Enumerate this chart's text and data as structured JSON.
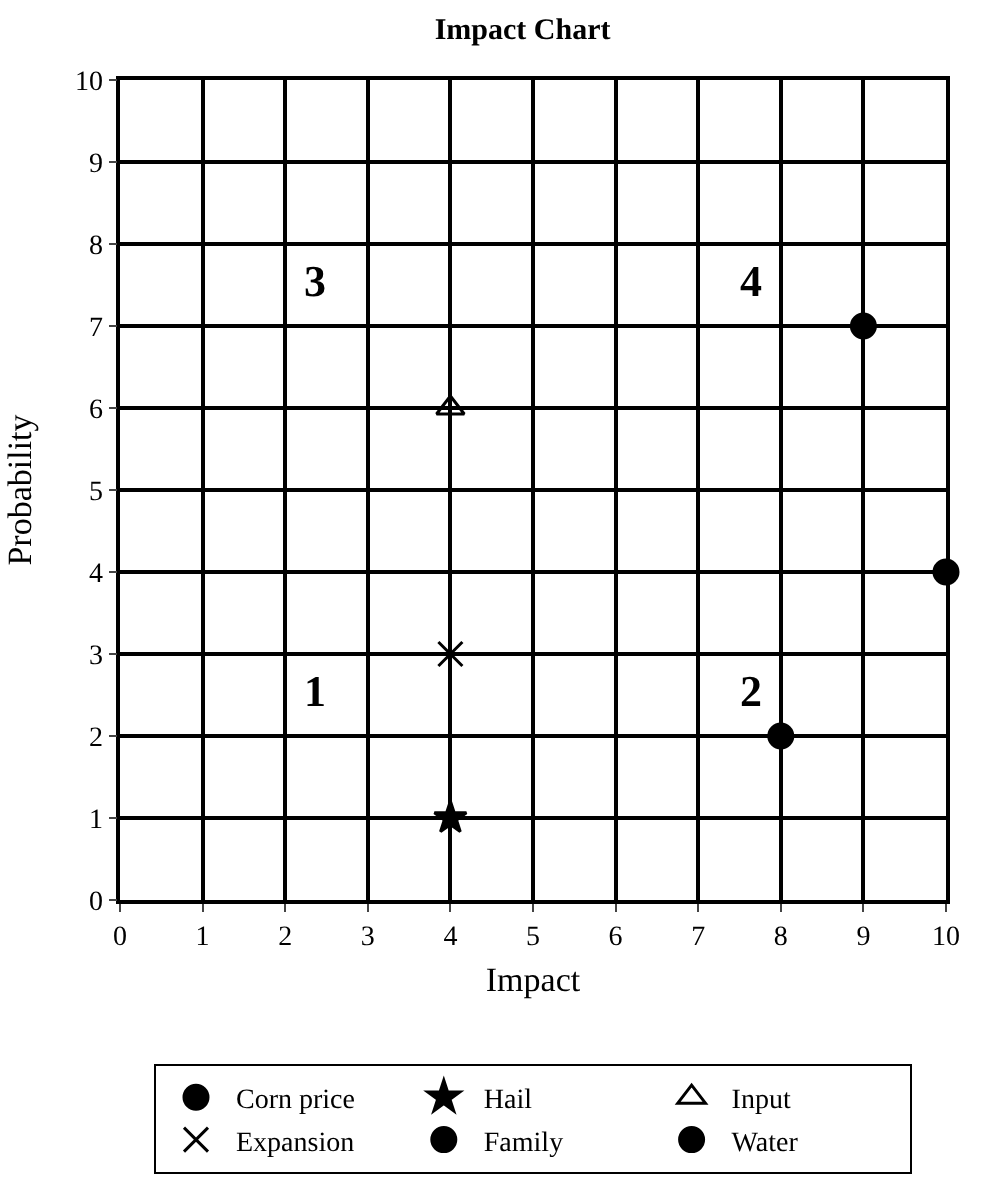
{
  "chart_data": {
    "type": "scatter",
    "title": "Impact Chart",
    "xlabel": "Impact",
    "ylabel": "Probability",
    "xlim": [
      0,
      10
    ],
    "ylim": [
      0,
      10
    ],
    "xticks": [
      0,
      1,
      2,
      3,
      4,
      5,
      6,
      7,
      8,
      9,
      10
    ],
    "yticks": [
      0,
      1,
      2,
      3,
      4,
      5,
      6,
      7,
      8,
      9,
      10
    ],
    "grid": true,
    "legend": "bottom",
    "series": [
      {
        "name": "Corn price",
        "color": "#000000",
        "marker": "circle",
        "x": [
          9
        ],
        "values": [
          7
        ]
      },
      {
        "name": "Hail",
        "color": "#000000",
        "marker": "star",
        "x": [
          4
        ],
        "values": [
          1
        ]
      },
      {
        "name": "Input",
        "color": "#000000",
        "marker": "triangle",
        "x": [
          4
        ],
        "values": [
          6
        ]
      },
      {
        "name": "Expansion",
        "color": "#000000",
        "marker": "cross",
        "x": [
          4
        ],
        "values": [
          3
        ]
      },
      {
        "name": "Family",
        "color": "#000000",
        "marker": "circle",
        "x": [
          8
        ],
        "values": [
          2
        ]
      },
      {
        "name": "Water",
        "color": "#000000",
        "marker": "circle",
        "x": [
          10
        ],
        "values": [
          4
        ]
      }
    ],
    "annotations": [
      "1",
      "2",
      "3",
      "4"
    ]
  }
}
